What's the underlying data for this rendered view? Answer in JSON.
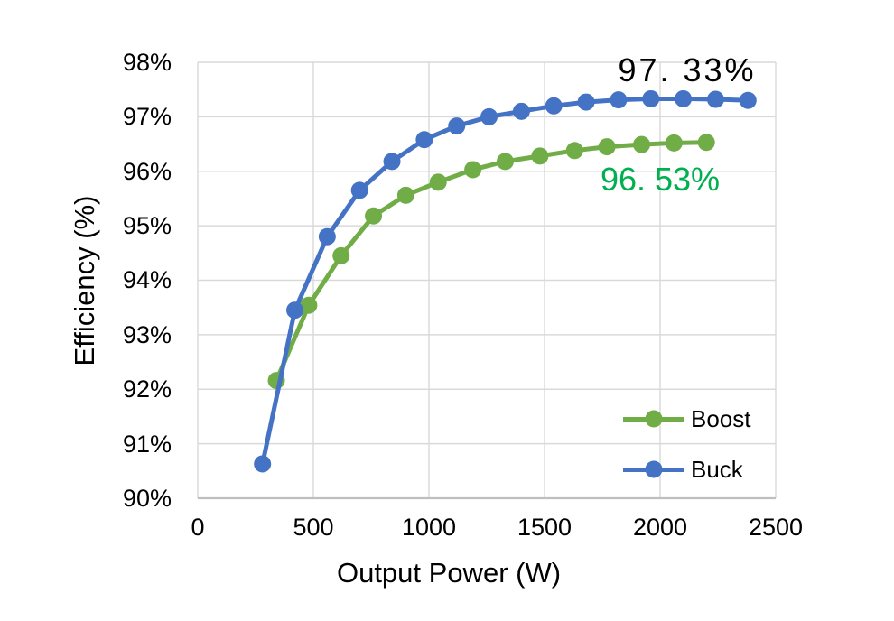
{
  "chart_data": {
    "type": "line",
    "title": "",
    "xlabel": "Output Power (W)",
    "ylabel": "Efficiency (%)",
    "xlim": [
      0,
      2500
    ],
    "ylim": [
      90,
      98
    ],
    "grid": true,
    "grid_color": "#D9D9D9",
    "axis_color": "#BFBFBF",
    "legend_position": "inside-bottom-right",
    "x_ticks": [
      {
        "label": "0",
        "value": 0
      },
      {
        "label": "500",
        "value": 500
      },
      {
        "label": "1000",
        "value": 1000
      },
      {
        "label": "1500",
        "value": 1500
      },
      {
        "label": "2000",
        "value": 2000
      },
      {
        "label": "2500",
        "value": 2500
      }
    ],
    "y_ticks": [
      {
        "label": "98%",
        "value": 98
      },
      {
        "label": "97%",
        "value": 97
      },
      {
        "label": "96%",
        "value": 96
      },
      {
        "label": "95%",
        "value": 95
      },
      {
        "label": "94%",
        "value": 94
      },
      {
        "label": "93%",
        "value": 93
      },
      {
        "label": "92%",
        "value": 92
      },
      {
        "label": "91%",
        "value": 91
      },
      {
        "label": "90%",
        "value": 90
      }
    ],
    "series": [
      {
        "name": "Boost",
        "color": "#70AD47",
        "x": [
          340,
          480,
          620,
          760,
          900,
          1040,
          1190,
          1330,
          1480,
          1630,
          1770,
          1920,
          2060,
          2200
        ],
        "values": [
          92.16,
          93.54,
          94.45,
          95.18,
          95.56,
          95.8,
          96.03,
          96.18,
          96.28,
          96.38,
          96.45,
          96.49,
          96.52,
          96.53
        ]
      },
      {
        "name": "Buck",
        "color": "#4472C4",
        "x": [
          280,
          420,
          560,
          700,
          840,
          980,
          1120,
          1260,
          1400,
          1540,
          1680,
          1820,
          1960,
          2100,
          2240,
          2380
        ],
        "values": [
          90.63,
          93.45,
          94.8,
          95.65,
          96.18,
          96.58,
          96.83,
          97.0,
          97.1,
          97.2,
          97.27,
          97.31,
          97.33,
          97.33,
          97.32,
          97.3
        ]
      }
    ],
    "annotations": [
      {
        "text": "97. 33%",
        "color": "#000000",
        "series": "Buck",
        "x": 2110,
        "y": 97.85
      },
      {
        "text": "96. 53%",
        "color": "#00B050",
        "series": "Boost",
        "x": 1995,
        "y": 95.85
      }
    ]
  }
}
